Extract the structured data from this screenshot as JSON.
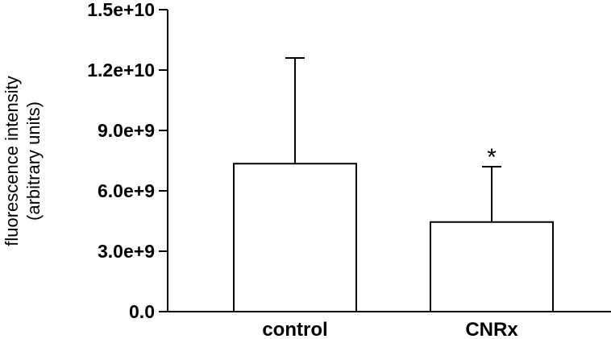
{
  "chart_data": {
    "type": "bar",
    "categories": [
      "control",
      "CNRx"
    ],
    "values": [
      7350000000.0,
      4450000000.0
    ],
    "error_upper": [
      12600000000.0,
      7200000000.0
    ],
    "annotations": [
      {
        "category": "CNRx",
        "text": "*"
      }
    ],
    "title": "",
    "xlabel": "",
    "ylabel_lines": [
      "fluorescence intensity",
      "(arbitrary units)"
    ],
    "ylim": [
      0,
      15000000000.0
    ],
    "yticks": [
      0,
      3000000000.0,
      6000000000.0,
      9000000000.0,
      12000000000.0,
      15000000000.0
    ],
    "ytick_labels": [
      "0.0",
      "3.0e+9",
      "6.0e+9",
      "9.0e+9",
      "1.2e+10",
      "1.5e+10"
    ],
    "grid": false,
    "colors": {
      "bar_fill": "#ffffff",
      "bar_stroke": "#000000",
      "axis": "#000000"
    }
  }
}
